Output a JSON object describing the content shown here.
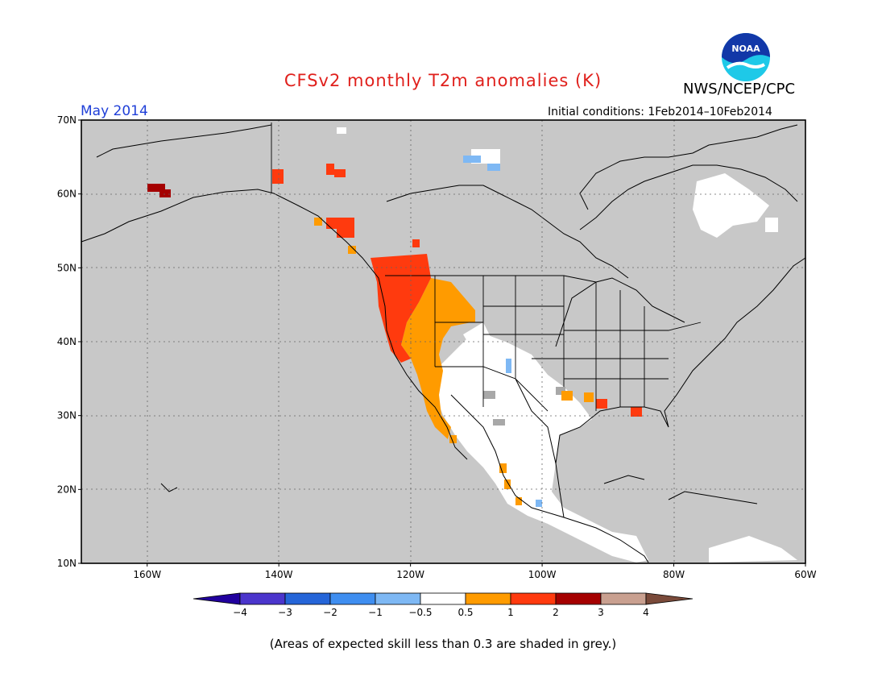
{
  "header": {
    "title": "CFSv2 monthly T2m anomalies (K)",
    "period": "May 2014",
    "org": "NWS/NCEP/CPC",
    "initial_conditions": "Initial conditions: 1Feb2014–10Feb2014",
    "logo_text": "NOAA"
  },
  "map": {
    "lat_labels": [
      "70N",
      "60N",
      "50N",
      "40N",
      "30N",
      "20N",
      "10N"
    ],
    "lon_labels": [
      "160W",
      "140W",
      "120W",
      "100W",
      "80W",
      "60W"
    ],
    "lat_values": [
      70,
      60,
      50,
      40,
      30,
      20,
      10
    ],
    "lon_values": [
      -160,
      -140,
      -120,
      -100,
      -80,
      -60
    ],
    "lon_range": [
      -170,
      -60
    ],
    "lat_range": [
      10,
      70
    ],
    "grid": true,
    "low_skill_color": "#c8c8c8",
    "no_anomaly_color": "#ffffff"
  },
  "colorbar": {
    "labels": [
      "−4",
      "−3",
      "−2",
      "−1",
      "−0.5",
      "0.5",
      "1",
      "2",
      "3",
      "4"
    ],
    "colors": [
      "#21009e",
      "#4b35cc",
      "#2565d8",
      "#3f8ef0",
      "#7eb8f4",
      "#ffffff",
      "#ff9b00",
      "#ff3a0e",
      "#a50000",
      "#c9a090",
      "#7a4a3a"
    ]
  },
  "footnote": "(Areas of expected skill less than 0.3 are shaded in grey.)"
}
